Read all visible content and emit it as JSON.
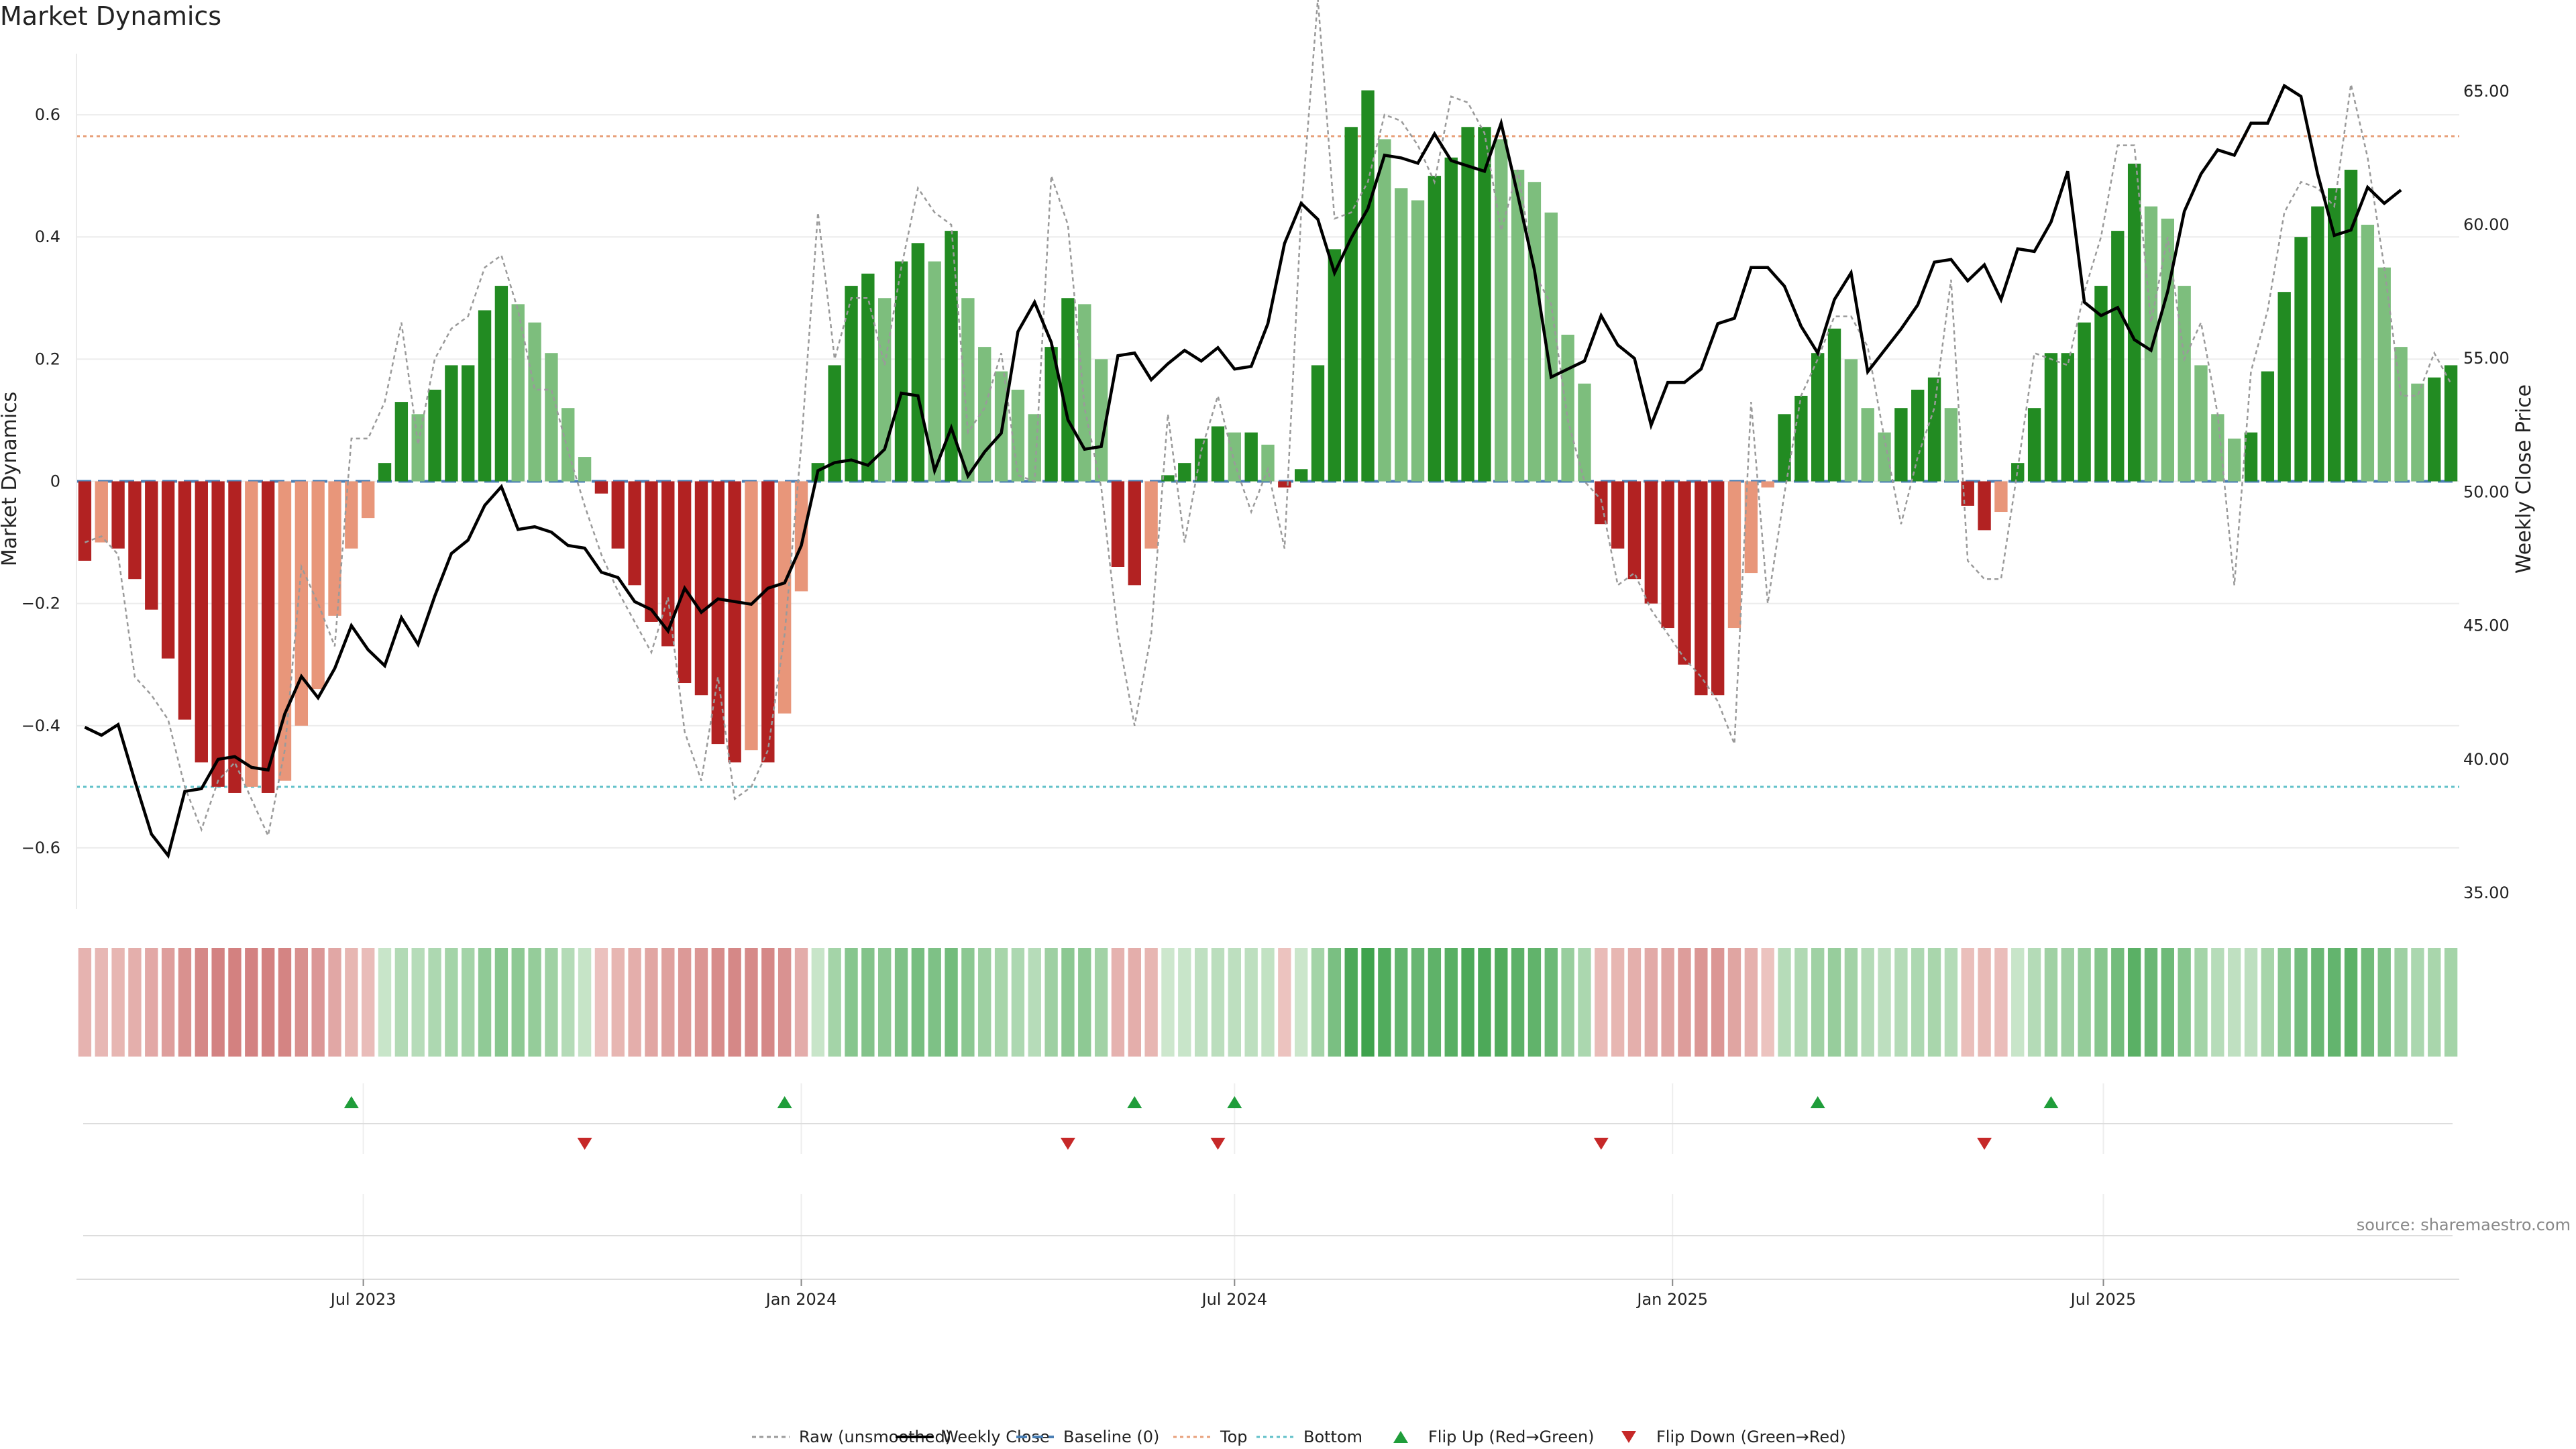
{
  "title": "Market Dynamics",
  "source": "source: sharemaestro.com",
  "colors": {
    "strong_green": "#228B22",
    "weak_green": "#7DBE7D",
    "strong_red": "#B22222",
    "weak_red": "#E8967A",
    "raw": "#9a9a9a",
    "close": "#000000",
    "baseline": "#4a7fb5",
    "top": "#e8a07a",
    "bottom": "#5fc0c8",
    "flip_up": "#1f9d3a",
    "flip_down": "#c62828"
  },
  "chart_data": {
    "type": "bar",
    "title": "Market Dynamics",
    "start_date": "2023-03-06",
    "ylabel_left": "Market Dynamics",
    "ylabel_right": "Weekly Close Price",
    "ylim_left": [
      -0.7,
      0.7
    ],
    "ylim_right": [
      34.4,
      66.4
    ],
    "yticks_left": [
      -0.6,
      -0.4,
      -0.2,
      0,
      0.2,
      0.4,
      0.6
    ],
    "yticks_left_labels": [
      "−0.6",
      "−0.4",
      "−0.2",
      "0",
      "0.2",
      "0.4",
      "0.6"
    ],
    "yticks_right": [
      35,
      40,
      45,
      50,
      55,
      60,
      65
    ],
    "yticks_right_labels": [
      "35.00",
      "40.00",
      "45.00",
      "50.00",
      "55.00",
      "60.00",
      "65.00"
    ],
    "xtick_dates": [
      "2023-07-01",
      "2024-01-01",
      "2024-07-01",
      "2025-01-01",
      "2025-07-01"
    ],
    "xtick_labels": [
      "Jul 2023",
      "Jan 2024",
      "Jul 2024",
      "Jan 2025",
      "Jul 2025"
    ],
    "top_level": 0.565,
    "bottom_level": -0.5,
    "grid": true,
    "legend_placement": "bottom-center",
    "legend": [
      "Raw (unsmoothed)",
      "Weekly Close",
      "Baseline (0)",
      "Top",
      "Bottom",
      "Flip Up (Red→Green)",
      "Flip Down (Green→Red)"
    ],
    "series": [
      {
        "name": "Market Dynamics",
        "values": [
          -0.13,
          -0.1,
          -0.11,
          -0.16,
          -0.21,
          -0.29,
          -0.39,
          -0.46,
          -0.5,
          -0.51,
          -0.5,
          -0.51,
          -0.49,
          -0.4,
          -0.34,
          -0.22,
          -0.11,
          -0.06,
          0.03,
          0.13,
          0.11,
          0.15,
          0.19,
          0.19,
          0.28,
          0.32,
          0.29,
          0.26,
          0.21,
          0.12,
          0.04,
          -0.02,
          -0.11,
          -0.17,
          -0.23,
          -0.27,
          -0.33,
          -0.35,
          -0.43,
          -0.46,
          -0.44,
          -0.46,
          -0.38,
          -0.18,
          0.03,
          0.19,
          0.32,
          0.34,
          0.3,
          0.36,
          0.39,
          0.36,
          0.41,
          0.3,
          0.22,
          0.18,
          0.15,
          0.11,
          0.22,
          0.3,
          0.29,
          0.2,
          -0.14,
          -0.17,
          -0.11,
          0.01,
          0.03,
          0.07,
          0.09,
          0.08,
          0.08,
          0.06,
          -0.01,
          0.02,
          0.19,
          0.38,
          0.58,
          0.64,
          0.56,
          0.48,
          0.46,
          0.5,
          0.53,
          0.58,
          0.58,
          0.56,
          0.51,
          0.49,
          0.44,
          0.24,
          0.16,
          -0.07,
          -0.11,
          -0.16,
          -0.2,
          -0.24,
          -0.3,
          -0.35,
          -0.35,
          -0.24,
          -0.15,
          -0.01,
          0.11,
          0.14,
          0.21,
          0.25,
          0.2,
          0.12,
          0.08,
          0.12,
          0.15,
          0.17,
          0.12,
          -0.04,
          -0.08,
          -0.05,
          0.03,
          0.12,
          0.21,
          0.21,
          0.26,
          0.32,
          0.41,
          0.52,
          0.45,
          0.43,
          0.32,
          0.19,
          0.11,
          0.07,
          0.08,
          0.18,
          0.31,
          0.4,
          0.45,
          0.48,
          0.51,
          0.42,
          0.35,
          0.22,
          0.16,
          0.17,
          0.19
        ]
      },
      {
        "name": "Raw (unsmoothed)",
        "values": [
          -0.1,
          -0.09,
          -0.12,
          -0.32,
          -0.35,
          -0.39,
          -0.5,
          -0.57,
          -0.49,
          -0.46,
          -0.52,
          -0.58,
          -0.44,
          -0.14,
          -0.2,
          -0.27,
          0.07,
          0.07,
          0.13,
          0.26,
          0.06,
          0.2,
          0.25,
          0.27,
          0.35,
          0.37,
          0.28,
          0.15,
          0.15,
          0.05,
          -0.04,
          -0.12,
          -0.18,
          -0.23,
          -0.28,
          -0.19,
          -0.41,
          -0.49,
          -0.32,
          -0.52,
          -0.5,
          -0.44,
          -0.25,
          0.06,
          0.44,
          0.2,
          0.3,
          0.3,
          0.19,
          0.35,
          0.48,
          0.44,
          0.42,
          0.08,
          0.12,
          0.21,
          0.01,
          0.0,
          0.5,
          0.42,
          0.12,
          -0.01,
          -0.25,
          -0.4,
          -0.25,
          0.11,
          -0.1,
          0.05,
          0.14,
          0.03,
          -0.05,
          0.02,
          -0.11,
          0.44,
          0.79,
          0.43,
          0.44,
          0.49,
          0.6,
          0.59,
          0.55,
          0.49,
          0.63,
          0.62,
          0.57,
          0.41,
          0.51,
          0.34,
          0.29,
          0.1,
          0.0,
          -0.03,
          -0.17,
          -0.15,
          -0.21,
          -0.25,
          -0.29,
          -0.32,
          -0.36,
          -0.43,
          0.13,
          -0.2,
          -0.02,
          0.14,
          0.2,
          0.27,
          0.27,
          0.22,
          0.07,
          -0.07,
          0.04,
          0.12,
          0.33,
          -0.13,
          -0.16,
          -0.16,
          0.02,
          0.21,
          0.2,
          0.19,
          0.31,
          0.4,
          0.55,
          0.55,
          0.26,
          0.4,
          0.2,
          0.26,
          0.11,
          -0.17,
          0.18,
          0.28,
          0.44,
          0.49,
          0.48,
          0.45,
          0.65,
          0.53,
          0.35,
          0.14,
          0.14,
          0.21,
          0.16
        ]
      },
      {
        "name": "Weekly Close",
        "values": [
          41.2,
          40.9,
          41.3,
          39.2,
          37.2,
          36.4,
          38.8,
          38.9,
          40.0,
          40.1,
          39.7,
          39.6,
          41.7,
          43.1,
          42.3,
          43.4,
          45.0,
          44.1,
          43.5,
          45.3,
          44.3,
          46.1,
          47.7,
          48.2,
          49.5,
          50.2,
          48.6,
          48.7,
          48.5,
          48.0,
          47.9,
          47.0,
          46.8,
          45.9,
          45.6,
          44.8,
          46.4,
          45.5,
          46.0,
          45.9,
          45.8,
          46.4,
          46.6,
          48.0,
          50.8,
          51.1,
          51.2,
          51.0,
          51.6,
          53.7,
          53.6,
          50.8,
          52.4,
          50.6,
          51.5,
          52.2,
          56.0,
          57.1,
          55.6,
          52.7,
          51.6,
          51.7,
          55.1,
          55.2,
          54.2,
          54.8,
          55.3,
          54.9,
          55.4,
          54.6,
          54.7,
          56.3,
          59.3,
          60.8,
          60.2,
          58.2,
          59.5,
          60.6,
          62.6,
          62.5,
          62.3,
          63.4,
          62.4,
          62.2,
          62.0,
          63.8,
          61.1,
          58.3,
          54.3,
          54.6,
          54.9,
          56.6,
          55.5,
          55.0,
          52.5,
          54.1,
          54.1,
          54.6,
          56.3,
          56.5,
          58.4,
          58.4,
          57.7,
          56.2,
          55.2,
          57.2,
          58.2,
          54.5,
          55.3,
          56.1,
          57.0,
          58.6,
          58.7,
          57.9,
          58.5,
          57.2,
          59.1,
          59.0,
          60.1,
          62.0,
          57.1,
          56.6,
          56.9,
          55.7,
          55.3,
          57.5,
          60.5,
          61.9,
          62.8,
          62.6,
          63.8,
          63.8,
          65.2,
          64.8,
          61.9,
          59.6,
          59.8,
          61.4,
          60.8,
          61.3
        ]
      }
    ],
    "flip_up_dates": [
      "2023-06-26",
      "2023-12-25",
      "2024-05-20",
      "2024-07-01",
      "2025-03-03",
      "2025-06-09"
    ],
    "flip_down_dates": [
      "2023-10-02",
      "2024-04-22",
      "2024-06-24",
      "2024-12-02",
      "2025-05-12"
    ]
  }
}
